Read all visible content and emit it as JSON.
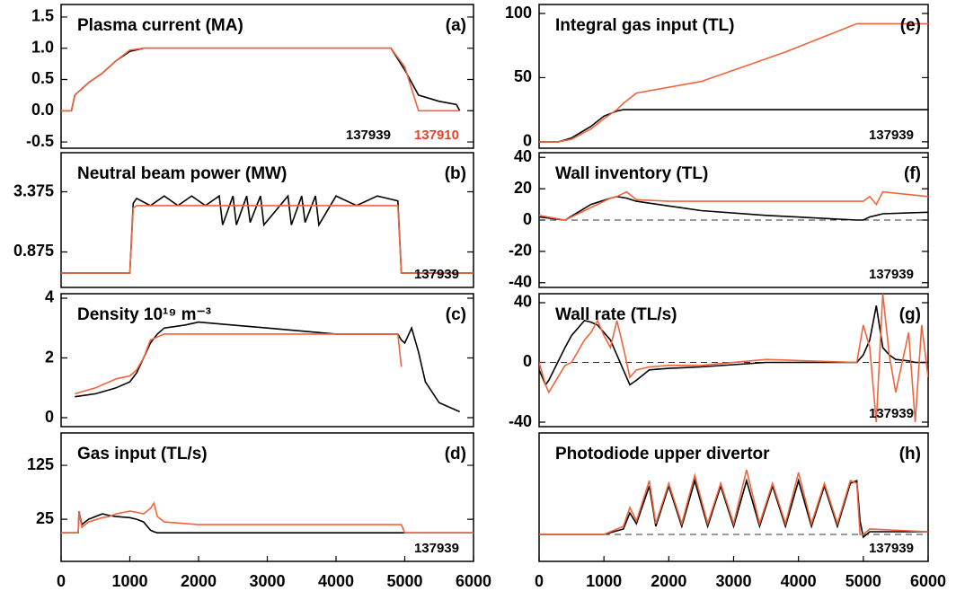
{
  "chart_data": [
    {
      "type": "line",
      "title": "Plasma current (MA)",
      "panel_label": "(a)",
      "annotations": [
        {
          "text": "137939",
          "color": "#000000"
        },
        {
          "text": "137910",
          "color": "#e8432a"
        }
      ],
      "x": [
        0,
        150,
        200,
        400,
        600,
        800,
        1000,
        1200,
        2000,
        3000,
        4000,
        4800,
        5000,
        5200,
        5500,
        5750,
        5800
      ],
      "series": [
        {
          "color": "#000000",
          "values": [
            0,
            0,
            0.25,
            0.45,
            0.6,
            0.8,
            0.95,
            1.0,
            1.0,
            1.0,
            1.0,
            1.0,
            0.65,
            0.25,
            0.15,
            0.1,
            0
          ]
        },
        {
          "color": "#f0643c",
          "values": [
            0,
            0,
            0.25,
            0.45,
            0.6,
            0.8,
            0.97,
            1.0,
            1.0,
            1.0,
            1.0,
            1.0,
            0.7,
            0,
            0,
            0,
            0
          ]
        }
      ],
      "xlim": [
        0,
        6000
      ],
      "ylim": [
        -0.6,
        1.7
      ],
      "yticks": [
        -0.5,
        {
          "value": 0,
          "label": "0.0"
        },
        0.5,
        {
          "value": 1,
          "label": "1.0"
        },
        1.5
      ],
      "zero_line": false
    },
    {
      "type": "line",
      "title": "Neutral beam power (MW)",
      "panel_label": "(b)",
      "annotations": [
        {
          "text": "137939",
          "color": "#000000"
        }
      ],
      "x": [
        0,
        1000,
        1050,
        1100,
        1300,
        1500,
        1700,
        1900,
        2100,
        2300,
        2350,
        2500,
        2550,
        2700,
        2750,
        2900,
        2950,
        3300,
        3350,
        3500,
        3550,
        3700,
        3750,
        4000,
        4300,
        4600,
        4900,
        4950,
        6000
      ],
      "series": [
        {
          "color": "#000000",
          "values": [
            0,
            0,
            2.9,
            3.1,
            2.8,
            3.2,
            2.8,
            3.2,
            2.8,
            3.2,
            2.0,
            3.2,
            2.0,
            3.2,
            2.1,
            3.2,
            2.0,
            3.2,
            2.0,
            3.2,
            2.1,
            3.2,
            2.0,
            3.2,
            2.8,
            3.2,
            3.0,
            0,
            0
          ]
        },
        {
          "color": "#f0643c",
          "values": [
            0,
            0,
            2.7,
            2.8,
            2.8,
            2.8,
            2.8,
            2.8,
            2.8,
            2.8,
            2.8,
            2.8,
            2.8,
            2.8,
            2.8,
            2.8,
            2.8,
            2.8,
            2.8,
            2.8,
            2.8,
            2.8,
            2.8,
            2.8,
            2.8,
            2.8,
            2.8,
            0,
            0
          ]
        }
      ],
      "xlim": [
        0,
        6000
      ],
      "ylim": [
        -0.6,
        5.0
      ],
      "yticks": [
        0.875,
        3.375
      ],
      "zero_line": false
    },
    {
      "type": "line",
      "title": "Density 10¹⁹ m⁻³",
      "panel_label": "(c)",
      "annotations": [],
      "x": [
        200,
        500,
        800,
        1000,
        1100,
        1200,
        1300,
        1400,
        1500,
        1800,
        2000,
        2500,
        3000,
        3500,
        4000,
        4500,
        4900,
        4950,
        5000,
        5100,
        5200,
        5300,
        5500,
        5800
      ],
      "series": [
        {
          "color": "#000000",
          "values": [
            0.7,
            0.8,
            1.0,
            1.2,
            1.5,
            2.0,
            2.5,
            2.8,
            3.0,
            3.1,
            3.2,
            3.1,
            3.0,
            2.9,
            2.8,
            2.8,
            2.8,
            2.6,
            2.5,
            3.0,
            2.2,
            1.2,
            0.5,
            0.2
          ]
        },
        {
          "color": "#f0643c",
          "values": [
            0.8,
            1.0,
            1.3,
            1.4,
            1.6,
            2.0,
            2.6,
            2.7,
            2.8,
            2.8,
            2.8,
            2.8,
            2.8,
            2.8,
            2.8,
            2.8,
            2.8,
            1.7,
            null,
            null,
            null,
            null,
            null,
            null
          ]
        }
      ],
      "xlim": [
        0,
        6000
      ],
      "ylim": [
        -0.3,
        4.15
      ],
      "yticks": [
        0,
        2,
        4
      ],
      "zero_line": false
    },
    {
      "type": "line",
      "title": "Gas input (TL/s)",
      "panel_label": "(d)",
      "annotations": [
        {
          "text": "137939",
          "color": "#000000"
        }
      ],
      "x": [
        0,
        250,
        260,
        300,
        400,
        600,
        700,
        800,
        1000,
        1100,
        1200,
        1300,
        1350,
        1400,
        1500,
        2000,
        3000,
        4000,
        4900,
        4950,
        5000,
        6000
      ],
      "series": [
        {
          "color": "#000000",
          "values": [
            0,
            0,
            40,
            15,
            25,
            35,
            32,
            30,
            28,
            25,
            20,
            5,
            2,
            0,
            0,
            0,
            0,
            0,
            0,
            0,
            0,
            0
          ]
        },
        {
          "color": "#f0643c",
          "values": [
            0,
            0,
            40,
            10,
            20,
            28,
            30,
            35,
            40,
            38,
            35,
            45,
            55,
            30,
            20,
            15,
            15,
            15,
            15,
            15,
            0,
            0
          ]
        }
      ],
      "xlim": [
        0,
        6000
      ],
      "ylim": [
        -53,
        185
      ],
      "yticks": [
        25,
        125
      ],
      "xticks": [
        0,
        1000,
        2000,
        3000,
        4000,
        5000,
        6000
      ],
      "zero_line": false
    },
    {
      "type": "line",
      "title": "Integral gas input (TL)",
      "panel_label": "(e)",
      "annotations": [
        {
          "text": "137939",
          "color": "#000000"
        }
      ],
      "x": [
        0,
        300,
        500,
        800,
        1000,
        1200,
        1300,
        1500,
        2500,
        3800,
        4900,
        6000
      ],
      "series": [
        {
          "color": "#000000",
          "values": [
            0,
            0,
            3,
            12,
            20,
            24,
            25,
            25,
            25,
            25,
            25,
            25
          ]
        },
        {
          "color": "#f0643c",
          "values": [
            0,
            0,
            2,
            10,
            18,
            25,
            30,
            38,
            47,
            70,
            92,
            92
          ]
        }
      ],
      "xlim": [
        0,
        6000
      ],
      "ylim": [
        -5,
        107
      ],
      "yticks": [
        0,
        50,
        100
      ],
      "zero_line": false
    },
    {
      "type": "line",
      "title": "Wall inventory (TL)",
      "panel_label": "(f)",
      "annotations": [
        {
          "text": "137939",
          "color": "#000000"
        }
      ],
      "x": [
        0,
        400,
        800,
        1100,
        1200,
        1350,
        1500,
        2000,
        2500,
        3500,
        4900,
        5000,
        5100,
        5200,
        5300,
        6000
      ],
      "series": [
        {
          "color": "#000000",
          "values": [
            2,
            0,
            10,
            14,
            15,
            14,
            12,
            9,
            6,
            3,
            0,
            0,
            2,
            3,
            4,
            5
          ]
        },
        {
          "color": "#f0643c",
          "values": [
            3,
            0,
            8,
            14,
            15,
            18,
            13,
            12,
            12,
            12,
            12,
            12,
            15,
            10,
            18,
            15
          ]
        }
      ],
      "xlim": [
        0,
        6000
      ],
      "ylim": [
        -43,
        43
      ],
      "yticks": [
        -40,
        -20,
        0,
        20,
        40
      ],
      "zero_line": true
    },
    {
      "type": "line",
      "title": "Wall rate (TL/s)",
      "panel_label": "(g)",
      "annotations": [
        {
          "text": "137939",
          "color": "#000000"
        }
      ],
      "x": [
        0,
        100,
        150,
        400,
        500,
        700,
        800,
        900,
        1000,
        1100,
        1200,
        1300,
        1400,
        1500,
        1700,
        2000,
        2500,
        3500,
        4900,
        5000,
        5100,
        5200,
        5300,
        5400,
        5500,
        5700,
        5800,
        5900,
        6000
      ],
      "series": [
        {
          "color": "#000000",
          "values": [
            -5,
            -15,
            -12,
            10,
            18,
            28,
            27,
            25,
            20,
            15,
            5,
            -5,
            -15,
            -12,
            -5,
            -4,
            -3,
            0,
            0,
            5,
            15,
            38,
            10,
            5,
            2,
            1,
            0,
            0,
            0
          ]
        },
        {
          "color": "#f0643c",
          "values": [
            0,
            -15,
            -20,
            -2,
            0,
            15,
            20,
            28,
            18,
            10,
            28,
            10,
            -10,
            -5,
            -3,
            -2,
            -2,
            2,
            0,
            25,
            10,
            -40,
            46,
            5,
            -20,
            20,
            -40,
            25,
            -10
          ]
        }
      ],
      "xlim": [
        0,
        6000
      ],
      "ylim": [
        -43,
        46
      ],
      "yticks": [
        -40,
        0,
        40
      ],
      "zero_line": true
    },
    {
      "type": "line",
      "title": "Photodiode upper divertor",
      "panel_label": "(h)",
      "annotations": [
        {
          "text": "137939",
          "color": "#000000"
        }
      ],
      "x": [
        0,
        1000,
        1300,
        1400,
        1500,
        1700,
        1800,
        2000,
        2200,
        2400,
        2600,
        2800,
        3000,
        3200,
        3400,
        3600,
        3800,
        4000,
        4200,
        4400,
        4600,
        4800,
        4900,
        4950,
        5000,
        5100,
        6000
      ],
      "series": [
        {
          "color": "#000000",
          "values": [
            0,
            0,
            0.2,
            0.8,
            0.4,
            1.8,
            0.3,
            1.8,
            0.3,
            2.0,
            0.3,
            1.8,
            0.3,
            2.0,
            0.3,
            1.8,
            0.3,
            2.0,
            0.3,
            1.8,
            0.3,
            1.9,
            2.0,
            0.5,
            -0.1,
            0.1,
            0.1
          ]
        },
        {
          "color": "#f0643c",
          "values": [
            0,
            0,
            0.3,
            1.0,
            0.5,
            2.0,
            0.4,
            1.9,
            0.4,
            2.2,
            0.4,
            1.9,
            0.4,
            2.4,
            0.4,
            1.9,
            0.4,
            2.3,
            0.4,
            1.9,
            0.4,
            2.0,
            1.9,
            0,
            0,
            0.2,
            0.1
          ]
        }
      ],
      "xlim": [
        0,
        6000
      ],
      "ylim": [
        -1,
        3.77
      ],
      "yticks": [],
      "xticks": [
        0,
        1000,
        2000,
        3000,
        4000,
        5000,
        6000
      ],
      "zero_line": true
    }
  ]
}
